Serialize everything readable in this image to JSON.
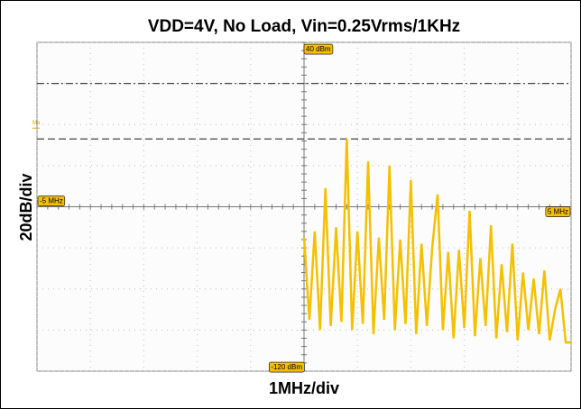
{
  "chart_data": {
    "type": "line",
    "title": "VDD=4V, No Load, Vin=0.25Vrms/1KHz",
    "y_label": "20dB/div",
    "x_label": "1MHz/div",
    "markers": {
      "top": "40 dBm",
      "bottom": "-120 dBm",
      "left": "-5 MHz",
      "right": "5 MHz",
      "ref": "Ma"
    },
    "xlim": [
      -5,
      5
    ],
    "ylim": [
      -120,
      40
    ],
    "xticks": [
      -5,
      -4,
      -3,
      -2,
      -1,
      0,
      1,
      2,
      3,
      4,
      5
    ],
    "yticks": [
      -120,
      -100,
      -80,
      -60,
      -40,
      -20,
      0,
      20,
      40
    ],
    "grid": true,
    "ref_lines": [
      {
        "value": 20,
        "style": "dashdot"
      },
      {
        "value": -7,
        "style": "dashed"
      }
    ],
    "x": [
      0,
      0.1,
      0.2,
      0.3,
      0.4,
      0.5,
      0.6,
      0.7,
      0.8,
      0.9,
      1.0,
      1.1,
      1.2,
      1.3,
      1.4,
      1.5,
      1.6,
      1.7,
      1.8,
      1.9,
      2.0,
      2.1,
      2.2,
      2.3,
      2.4,
      2.5,
      2.6,
      2.7,
      2.8,
      2.9,
      3.0,
      3.1,
      3.2,
      3.3,
      3.4,
      3.5,
      3.6,
      3.7,
      3.8,
      3.9,
      4.0,
      4.1,
      4.2,
      4.3,
      4.4,
      4.5,
      4.6,
      4.7,
      4.8,
      4.9,
      5.0
    ],
    "series": [
      {
        "name": "spectrum",
        "color": "#f5c000",
        "values": [
          -55,
          -95,
          -52,
          -100,
          -31,
          -98,
          -50,
          -96,
          -7,
          -100,
          -52,
          -97,
          -18,
          -102,
          -55,
          -95,
          -20,
          -100,
          -56,
          -97,
          -27,
          -102,
          -58,
          -98,
          -60,
          -34,
          -100,
          -62,
          -104,
          -61,
          -99,
          -42,
          -103,
          -65,
          -98,
          -49,
          -104,
          -68,
          -101,
          -58,
          -105,
          -72,
          -100,
          -75,
          -102,
          -71,
          -105,
          -90,
          -80,
          -106,
          -106
        ]
      }
    ]
  }
}
